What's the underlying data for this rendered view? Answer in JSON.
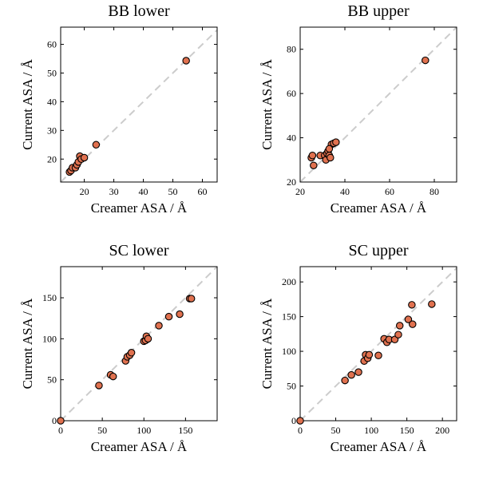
{
  "chart_data": [
    {
      "type": "scatter",
      "title": "BB lower",
      "x_label": "Creamer ASA / Å",
      "y_label": "Current ASA / Å",
      "color": "#e0714f",
      "x": [
        15,
        15.5,
        16,
        17,
        17.5,
        18,
        18.5,
        19,
        20,
        24,
        54.5
      ],
      "values": [
        15.5,
        16,
        17,
        17,
        18,
        19,
        21,
        20,
        20.5,
        25,
        54.3
      ],
      "xlim": [
        12,
        65
      ],
      "ylim": [
        12,
        66
      ],
      "xticks": [
        20,
        30,
        40,
        50,
        60
      ],
      "yticks": [
        20,
        30,
        40,
        50,
        60
      ]
    },
    {
      "type": "scatter",
      "title": "BB upper",
      "x_label": "Creamer ASA / Å",
      "y_label": "Current ASA / Å",
      "color": "#e0714f",
      "x": [
        25,
        25.5,
        26,
        29,
        31,
        31.5,
        32,
        32.5,
        33,
        33.5,
        34,
        35,
        36,
        33,
        76
      ],
      "values": [
        31,
        32,
        27.5,
        32,
        32,
        30,
        33,
        34,
        32,
        31,
        37,
        37.5,
        38,
        35,
        75
      ],
      "xlim": [
        20,
        90
      ],
      "ylim": [
        20,
        90
      ],
      "xticks": [
        20,
        40,
        60,
        80
      ],
      "yticks": [
        20,
        40,
        60,
        80
      ]
    },
    {
      "type": "scatter",
      "title": "SC lower",
      "x_label": "Creamer ASA / Å",
      "y_label": "Current ASA / Å",
      "color": "#e0714f",
      "x": [
        0,
        46,
        60,
        63,
        78,
        80,
        83,
        85,
        100,
        102,
        103,
        105,
        118,
        130,
        143,
        155,
        157
      ],
      "values": [
        0,
        43,
        56,
        54,
        73,
        78,
        80,
        83,
        97,
        98,
        103,
        100,
        116,
        127,
        130,
        149,
        149
      ],
      "xlim": [
        0,
        188
      ],
      "ylim": [
        0,
        188
      ],
      "xticks": [
        0,
        50,
        100,
        150
      ],
      "yticks": [
        0,
        50,
        100,
        150
      ]
    },
    {
      "type": "scatter",
      "title": "SC upper",
      "x_label": "Creamer ASA / Å",
      "y_label": "Current ASA / Å",
      "color": "#e0714f",
      "x": [
        0,
        63,
        72,
        82,
        90,
        92,
        95,
        97,
        110,
        118,
        122,
        125,
        133,
        138,
        140,
        152,
        157,
        158,
        185
      ],
      "values": [
        0,
        58,
        66,
        70,
        86,
        95,
        90,
        95,
        94,
        118,
        113,
        117,
        117,
        124,
        137,
        146,
        167,
        139,
        168
      ],
      "xlim": [
        0,
        220
      ],
      "ylim": [
        0,
        222
      ],
      "xticks": [
        0,
        50,
        100,
        150,
        200
      ],
      "yticks": [
        0,
        50,
        100,
        150,
        200
      ]
    }
  ]
}
